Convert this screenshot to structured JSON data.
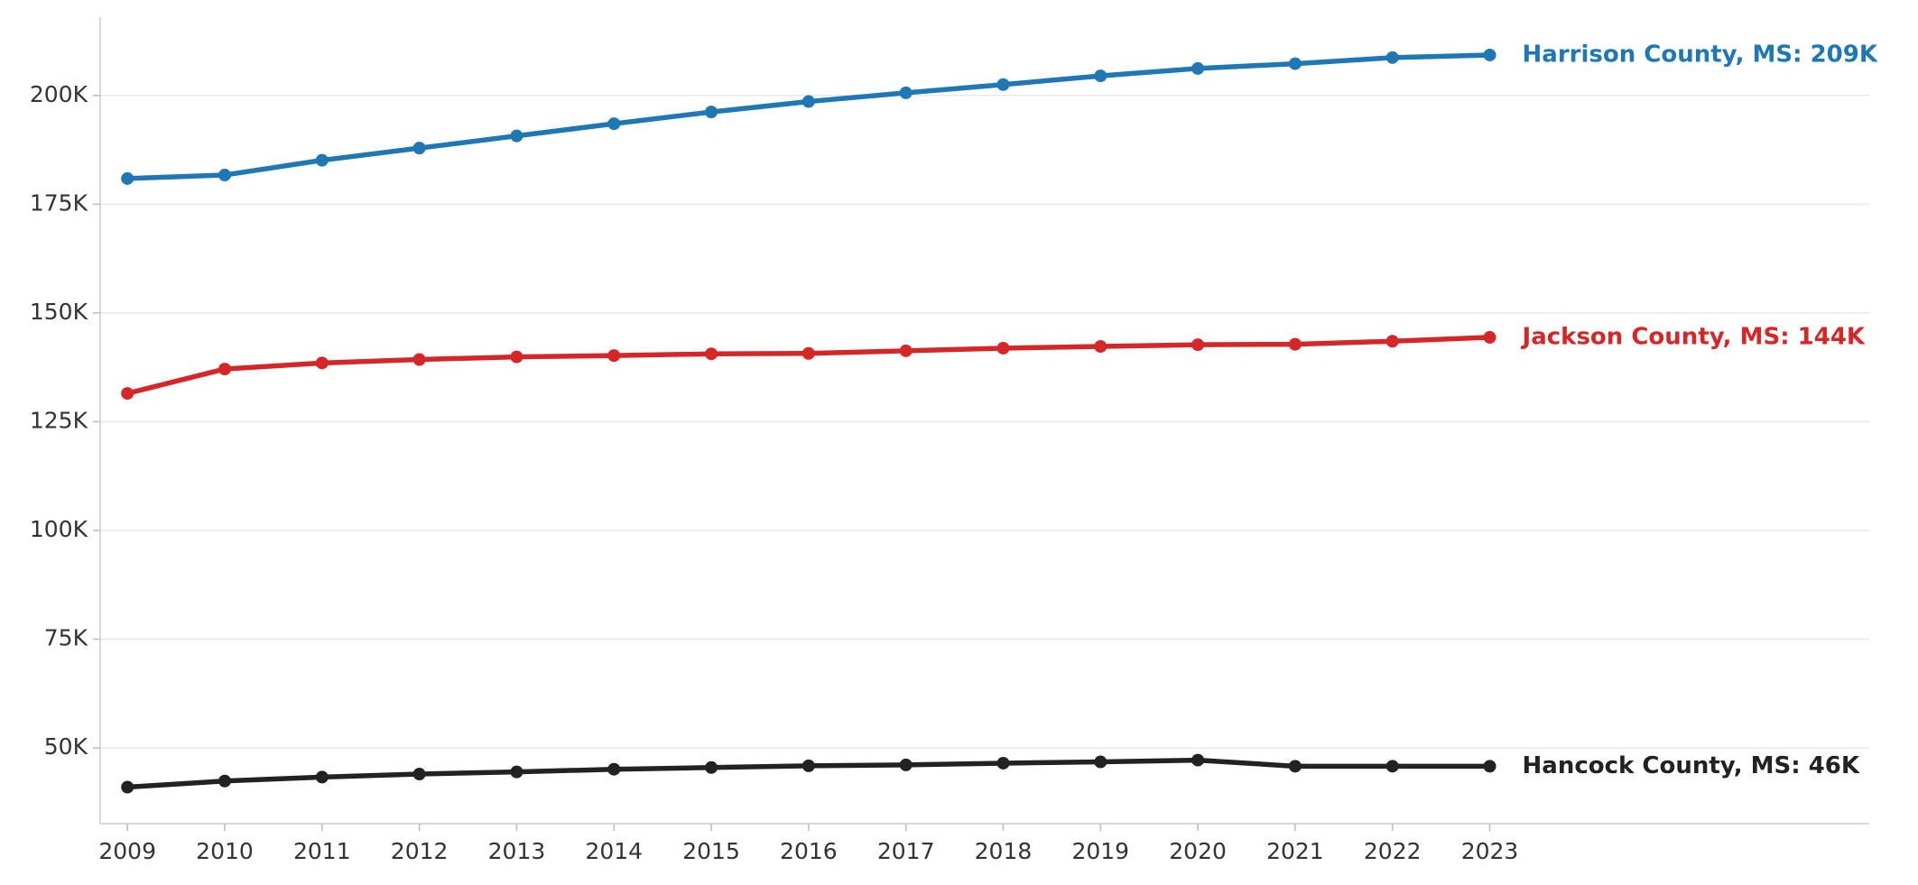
{
  "chart_data": {
    "type": "line",
    "x": [
      2009,
      2010,
      2011,
      2012,
      2013,
      2014,
      2015,
      2016,
      2017,
      2018,
      2019,
      2020,
      2021,
      2022,
      2023
    ],
    "xlim": [
      2008.72,
      2026.9
    ],
    "ylim": [
      32600,
      218000
    ],
    "yticks": [
      {
        "value": 50000,
        "label": "50K"
      },
      {
        "value": 75000,
        "label": "75K"
      },
      {
        "value": 100000,
        "label": "100K"
      },
      {
        "value": 125000,
        "label": "125K"
      },
      {
        "value": 150000,
        "label": "150K"
      },
      {
        "value": 175000,
        "label": "175K"
      },
      {
        "value": 200000,
        "label": "200K"
      }
    ],
    "grid": true,
    "series": [
      {
        "name": "Harrison County, MS: 209K",
        "color": "#1f77b4",
        "values": [
          180900,
          181700,
          185100,
          187900,
          190700,
          193500,
          196200,
          198600,
          200600,
          202500,
          204500,
          206200,
          207300,
          208700,
          209300
        ]
      },
      {
        "name": "Jackson County, MS: 144K",
        "color": "#d62728",
        "values": [
          131500,
          137100,
          138500,
          139300,
          139900,
          140200,
          140600,
          140700,
          141300,
          141900,
          142300,
          142700,
          142800,
          143500,
          144400
        ]
      },
      {
        "name": "Hancock County, MS: 46K",
        "color": "#222222",
        "values": [
          41000,
          42400,
          43300,
          44000,
          44500,
          45100,
          45500,
          45900,
          46100,
          46500,
          46800,
          47200,
          45800,
          45800,
          45800
        ]
      }
    ]
  }
}
